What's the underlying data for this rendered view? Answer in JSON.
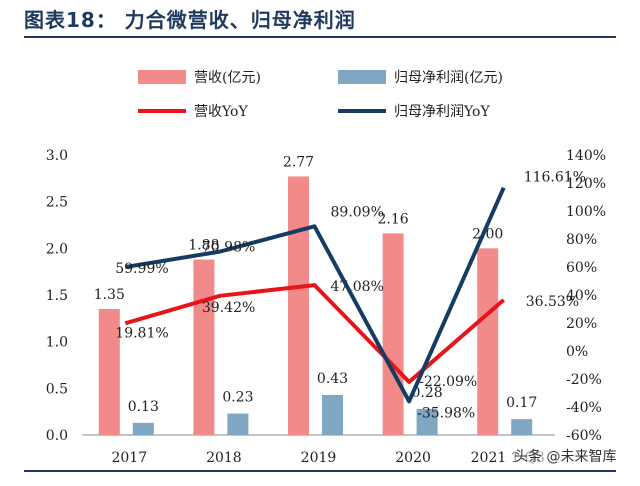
{
  "title": "图表18：   力合微营收、归母净利润",
  "watermark": "头条 @未来智库",
  "colors": {
    "revenue_bar": "#f28a8a",
    "profit_bar": "#7fa7c4",
    "revenue_line": "#e8141b",
    "profit_line": "#153d61",
    "title": "#1f3a5f"
  },
  "chart_data": {
    "type": "bar",
    "categories": [
      "2017",
      "2018",
      "2019",
      "2020",
      "2021Q1-Q3"
    ],
    "category_labels_shown": [
      "2017",
      "2018",
      "2019",
      "2020",
      "2021 1-Q3"
    ],
    "series": [
      {
        "name": "营收(亿元)",
        "type": "bar",
        "axis": "left",
        "values": [
          1.35,
          1.88,
          2.77,
          2.16,
          2.0
        ],
        "labels": [
          "1.35",
          "1.88",
          "2.77",
          "2.16",
          "2.00"
        ]
      },
      {
        "name": "归母净利润(亿元)",
        "type": "bar",
        "axis": "left",
        "values": [
          0.13,
          0.23,
          0.43,
          0.28,
          0.17
        ],
        "labels": [
          "0.13",
          "0.23",
          "0.43",
          "0.28",
          "0.17"
        ]
      },
      {
        "name": "营收YoY",
        "type": "line",
        "axis": "right",
        "values": [
          19.81,
          39.42,
          47.08,
          -22.09,
          36.53
        ],
        "labels": [
          "19.81%",
          "39.42%",
          "47.08%",
          "-22.09%",
          "36.53%"
        ]
      },
      {
        "name": "归母净利润YoY",
        "type": "line",
        "axis": "right",
        "values": [
          59.99,
          70.98,
          89.09,
          -35.98,
          116.61
        ],
        "labels": [
          "59.99%",
          "70.98%",
          "89.09%",
          "-35.98%",
          "116.61%"
        ]
      }
    ],
    "left_axis": {
      "ylim": [
        0,
        3.0
      ],
      "ticks": [
        "0.0",
        "0.5",
        "1.0",
        "1.5",
        "2.0",
        "2.5",
        "3.0"
      ]
    },
    "right_axis": {
      "ylim": [
        -60,
        140
      ],
      "ticks": [
        "-60%",
        "-40%",
        "-20%",
        "0%",
        "20%",
        "40%",
        "60%",
        "80%",
        "100%",
        "120%",
        "140%"
      ]
    },
    "legend_position": "top",
    "grid": false
  }
}
